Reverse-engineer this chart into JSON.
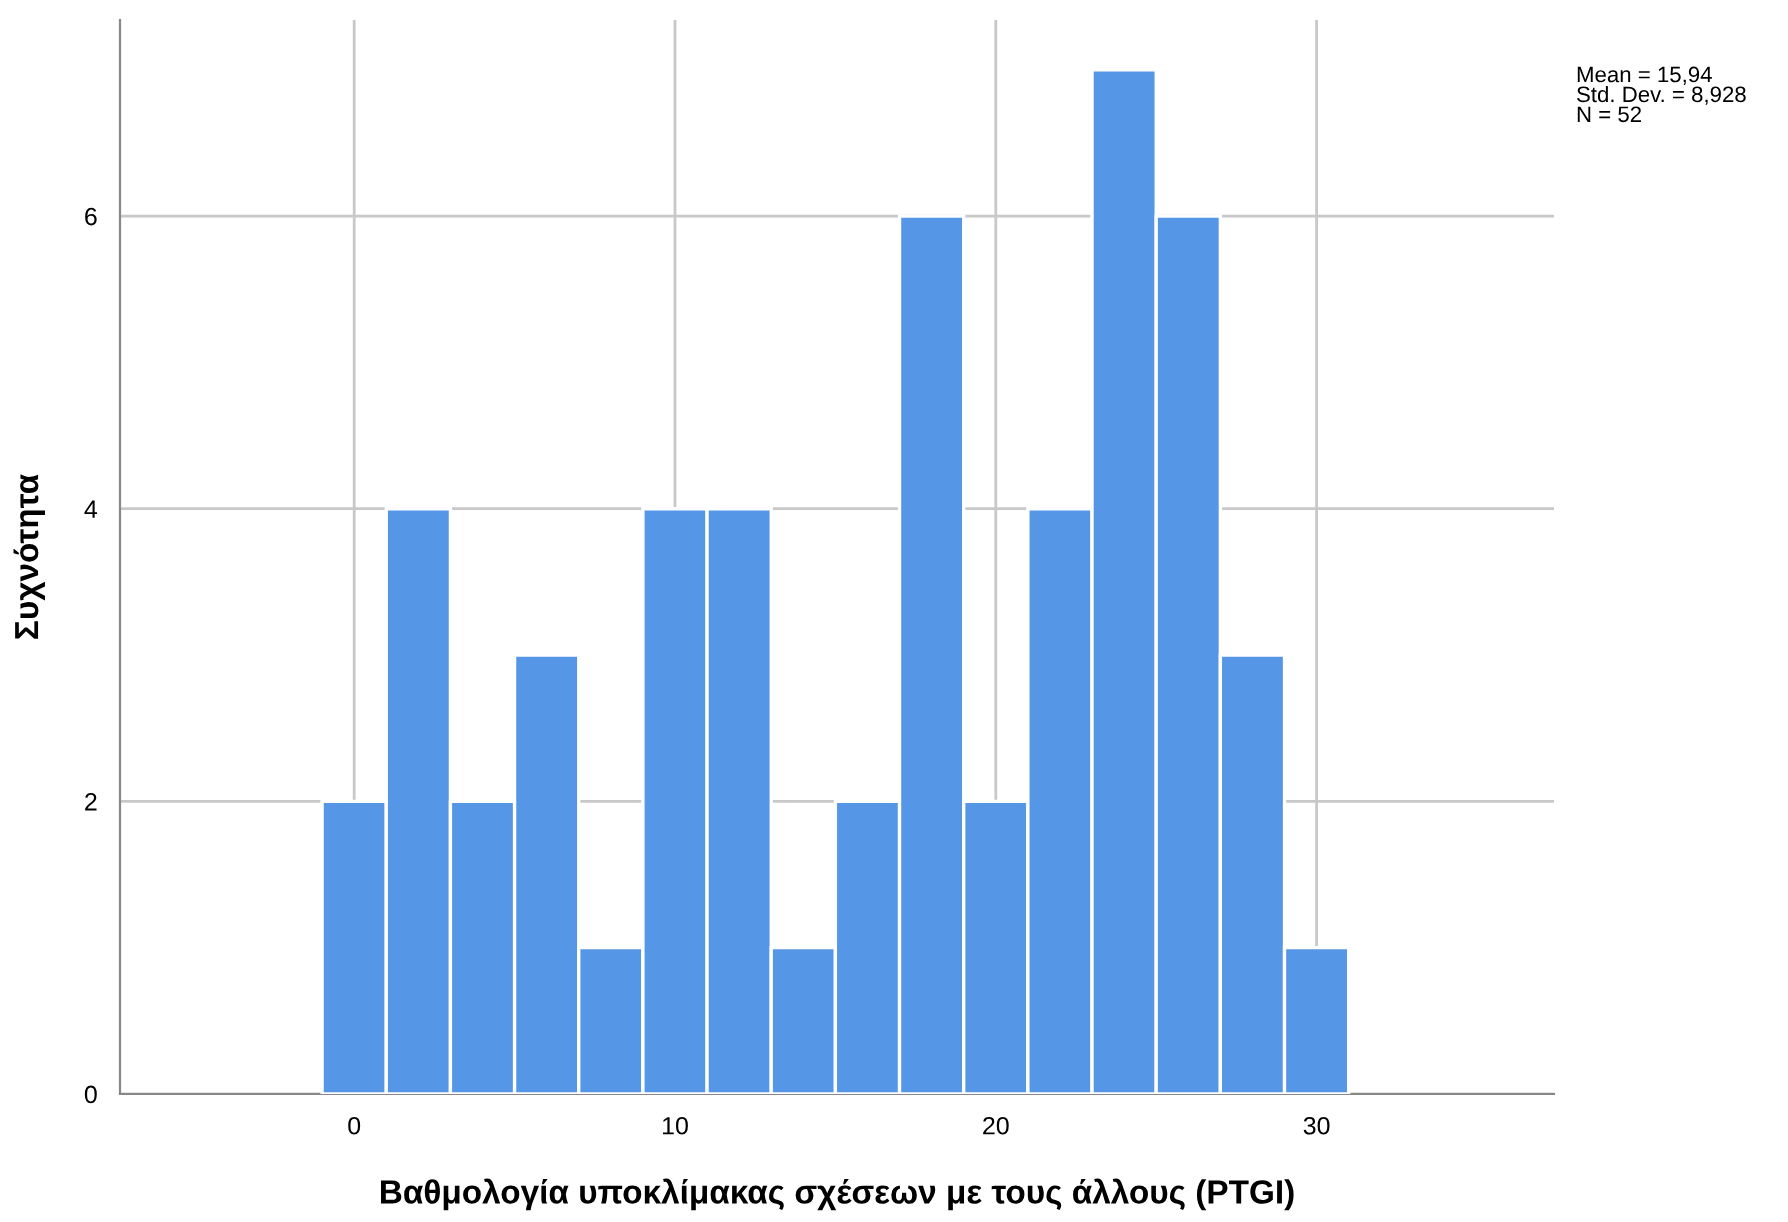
{
  "chart_data": {
    "type": "histogram",
    "xlabel": "Βαθμολογία υποκλίμακας σχέσεων με τους άλλους (PTGI)",
    "ylabel": "Συχνότητα",
    "bins": [
      -1,
      1,
      3,
      5,
      7,
      9,
      11,
      13,
      15,
      17,
      19,
      21,
      23,
      25,
      27,
      29,
      31
    ],
    "values": [
      2,
      4,
      2,
      3,
      1,
      4,
      4,
      1,
      2,
      6,
      2,
      4,
      7,
      6,
      3,
      1
    ],
    "color": "#5596e6",
    "xlim": [
      -7.3,
      37.4
    ],
    "ylim": [
      0,
      7.34
    ],
    "xticks": [
      0,
      10,
      20,
      30
    ],
    "yticks": [
      0,
      2,
      4,
      6
    ],
    "grid": true,
    "annotations": [
      "Mean = 15,94\nStd. Dev. = 8,928\nN = 52"
    ]
  }
}
